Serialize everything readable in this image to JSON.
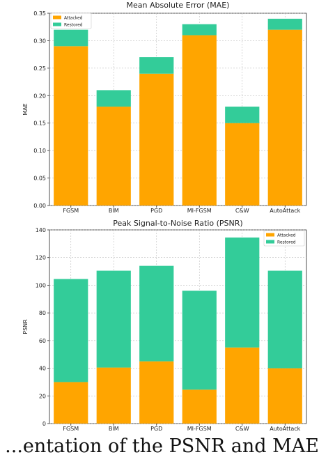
{
  "chart_data": [
    {
      "type": "bar",
      "stacked": true,
      "title": "Mean Absolute Error (MAE)",
      "xlabel": "",
      "ylabel": "MAE",
      "categories": [
        "FGSM",
        "BIM",
        "PGD",
        "MI-FGSM",
        "C&W",
        "AutoAttack"
      ],
      "series": [
        {
          "name": "Attacked",
          "color": "#ffa500",
          "values": [
            0.29,
            0.18,
            0.24,
            0.31,
            0.15,
            0.32
          ]
        },
        {
          "name": "Restored",
          "color": "#33cc99",
          "values": [
            0.03,
            0.03,
            0.03,
            0.02,
            0.03,
            0.02
          ]
        }
      ],
      "ylim": [
        0,
        0.35
      ],
      "yticks": [
        "0.00",
        "0.05",
        "0.10",
        "0.15",
        "0.20",
        "0.25",
        "0.30",
        "0.35"
      ],
      "grid": true,
      "legend": "top-left"
    },
    {
      "type": "bar",
      "stacked": true,
      "title": "Peak Signal-to-Noise Ratio (PSNR)",
      "xlabel": "",
      "ylabel": "PSNR",
      "categories": [
        "FGSM",
        "BIM",
        "PGD",
        "MI-FGSM",
        "C&W",
        "AutoAttack"
      ],
      "series": [
        {
          "name": "Attacked",
          "color": "#ffa500",
          "values": [
            30,
            40.5,
            45,
            24.5,
            55,
            40
          ]
        },
        {
          "name": "Restored",
          "color": "#33cc99",
          "values": [
            74.5,
            70,
            69,
            71.5,
            79.5,
            70.5
          ]
        }
      ],
      "ylim": [
        0,
        140
      ],
      "yticks": [
        "0",
        "20",
        "40",
        "60",
        "80",
        "100",
        "120",
        "140"
      ],
      "grid": true,
      "legend": "top-right"
    }
  ],
  "caption_fragment": "...entation of the PSNR and MAE"
}
